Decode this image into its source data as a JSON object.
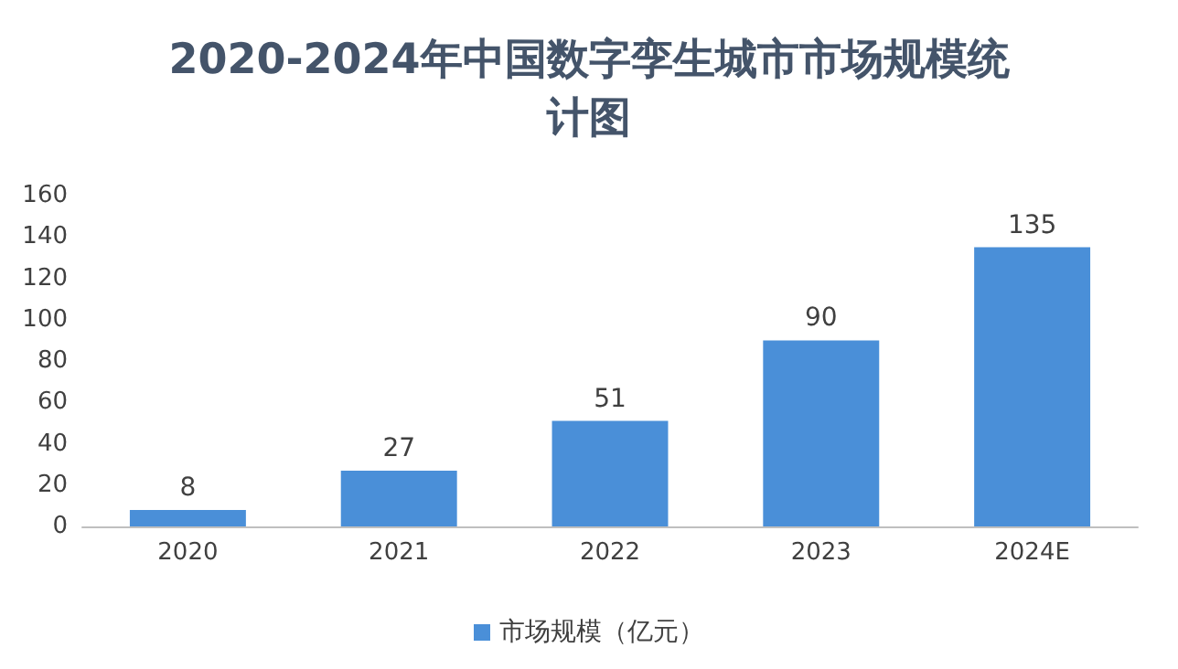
{
  "chart_data": {
    "type": "bar",
    "title": "2020-2024年中国数字孪生城市市场规模统计图",
    "categories": [
      "2020",
      "2021",
      "2022",
      "2023",
      "2024E"
    ],
    "series": [
      {
        "name": "市场规模（亿元）",
        "color": "#4a8fd8",
        "values": [
          8,
          27,
          51,
          90,
          135
        ]
      }
    ],
    "ylim": [
      0,
      160
    ],
    "yticks": [
      0,
      20,
      40,
      60,
      80,
      100,
      120,
      140,
      160
    ],
    "grid": false,
    "legend": "bottom",
    "data_labels": true
  }
}
